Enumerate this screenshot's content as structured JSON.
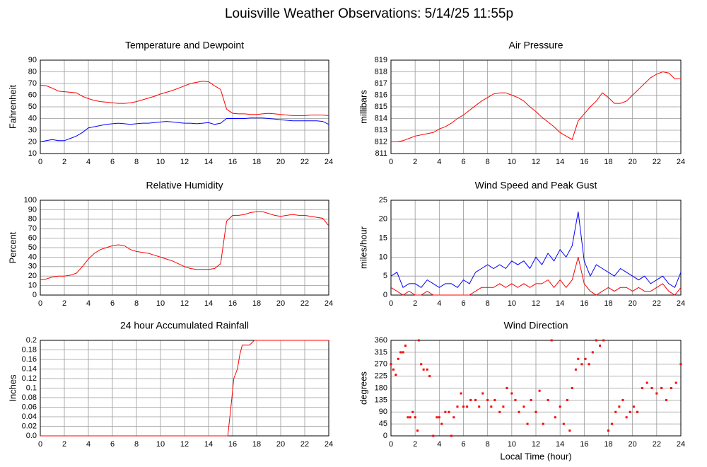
{
  "title": "Louisville Weather Observations: 5/14/25 11:55p",
  "chart_data": [
    {
      "type": "line",
      "title": "Temperature and Dewpoint",
      "ylabel": "Fahrenheit",
      "x": [
        0,
        0.5,
        1,
        1.5,
        2,
        2.5,
        3,
        3.5,
        4,
        4.5,
        5,
        5.5,
        6,
        6.5,
        7,
        7.5,
        8,
        8.5,
        9,
        9.5,
        10,
        10.5,
        11,
        11.5,
        12,
        12.5,
        13,
        13.5,
        14,
        14.5,
        15,
        15.5,
        16,
        16.5,
        17,
        17.5,
        18,
        18.5,
        19,
        19.5,
        20,
        20.5,
        21,
        21.5,
        22,
        22.5,
        23,
        23.5,
        24
      ],
      "series": [
        {
          "color": "#ff0000",
          "values": [
            68.5,
            68,
            66,
            63.5,
            63,
            62.5,
            62,
            59,
            57,
            55.5,
            54.5,
            54,
            53.5,
            53,
            53,
            53.5,
            54.5,
            56,
            57.5,
            59,
            61,
            62.5,
            64,
            66,
            68,
            70,
            71,
            72,
            71.5,
            68,
            65,
            48,
            44.5,
            44,
            44,
            43.5,
            43.5,
            44,
            44.5,
            44,
            43.5,
            43,
            42.5,
            42.5,
            42.5,
            43,
            43,
            43,
            42.5
          ]
        },
        {
          "color": "#0000ff",
          "values": [
            20,
            21,
            22,
            21,
            21,
            23,
            25,
            28,
            32,
            33,
            34,
            35,
            35.5,
            36,
            35.5,
            35,
            35.5,
            36,
            36,
            36.5,
            37,
            37.5,
            37,
            36.5,
            36,
            36,
            35.5,
            36,
            36.5,
            35,
            36,
            40,
            40,
            40,
            40,
            40.5,
            40.5,
            40.5,
            40,
            39.5,
            39,
            38.5,
            38,
            38,
            38,
            38,
            38,
            37.5,
            35
          ]
        }
      ],
      "xlim": [
        0,
        24
      ],
      "xticks": [
        0,
        2,
        4,
        6,
        8,
        10,
        12,
        14,
        16,
        18,
        20,
        22,
        24
      ],
      "ylim": [
        10,
        90
      ],
      "yticks": [
        10,
        20,
        30,
        40,
        50,
        60,
        70,
        80,
        90
      ],
      "grid": true
    },
    {
      "type": "line",
      "title": "Air Pressure",
      "ylabel": "millibars",
      "x": [
        0,
        0.5,
        1,
        1.5,
        2,
        2.5,
        3,
        3.5,
        4,
        4.5,
        5,
        5.5,
        6,
        6.5,
        7,
        7.5,
        8,
        8.5,
        9,
        9.5,
        10,
        10.5,
        11,
        11.5,
        12,
        12.5,
        13,
        13.5,
        14,
        14.5,
        15,
        15.5,
        16,
        16.5,
        17,
        17.5,
        18,
        18.5,
        19,
        19.5,
        20,
        20.5,
        21,
        21.5,
        22,
        22.5,
        23,
        23.5,
        24
      ],
      "series": [
        {
          "color": "#ff0000",
          "values": [
            812,
            812,
            812.1,
            812.3,
            812.5,
            812.6,
            812.7,
            812.8,
            813.1,
            813.3,
            813.6,
            814,
            814.3,
            814.7,
            815.1,
            815.5,
            815.8,
            816.1,
            816.2,
            816.2,
            816,
            815.8,
            815.5,
            815,
            814.6,
            814.1,
            813.7,
            813.3,
            812.8,
            812.5,
            812.2,
            813.8,
            814.4,
            815,
            815.5,
            816.2,
            815.8,
            815.3,
            815.3,
            815.5,
            816,
            816.5,
            817,
            817.5,
            817.8,
            818,
            817.9,
            817.4,
            817.4
          ]
        }
      ],
      "xlim": [
        0,
        24
      ],
      "xticks": [
        0,
        2,
        4,
        6,
        8,
        10,
        12,
        14,
        16,
        18,
        20,
        22,
        24
      ],
      "ylim": [
        811,
        819
      ],
      "yticks": [
        811,
        812,
        813,
        814,
        815,
        816,
        817,
        818,
        819
      ],
      "grid": true
    },
    {
      "type": "line",
      "title": "Relative Humidity",
      "ylabel": "Percent",
      "x": [
        0,
        0.5,
        1,
        1.5,
        2,
        2.5,
        3,
        3.5,
        4,
        4.5,
        5,
        5.5,
        6,
        6.5,
        7,
        7.5,
        8,
        8.5,
        9,
        9.5,
        10,
        10.5,
        11,
        11.5,
        12,
        12.5,
        13,
        13.5,
        14,
        14.5,
        15,
        15.5,
        16,
        16.5,
        17,
        17.5,
        18,
        18.5,
        19,
        19.5,
        20,
        20.5,
        21,
        21.5,
        22,
        22.5,
        23,
        23.5,
        24
      ],
      "series": [
        {
          "color": "#ff0000",
          "values": [
            16,
            17,
            19,
            20,
            20,
            21,
            23,
            30,
            38,
            44,
            48,
            50,
            52,
            53,
            52,
            48,
            46,
            45,
            44,
            42,
            40,
            38,
            36,
            33,
            30,
            28,
            27,
            27,
            27,
            28,
            33,
            78,
            84,
            84,
            85,
            87,
            88,
            88,
            86,
            84,
            83,
            84,
            85,
            84,
            84,
            83,
            82,
            81,
            73
          ]
        }
      ],
      "xlim": [
        0,
        24
      ],
      "xticks": [
        0,
        2,
        4,
        6,
        8,
        10,
        12,
        14,
        16,
        18,
        20,
        22,
        24
      ],
      "ylim": [
        0,
        100
      ],
      "yticks": [
        0,
        10,
        20,
        30,
        40,
        50,
        60,
        70,
        80,
        90,
        100
      ],
      "grid": true
    },
    {
      "type": "line",
      "title": "Wind Speed and Peak Gust",
      "ylabel": "miles/hour",
      "x": [
        0,
        0.5,
        1,
        1.5,
        2,
        2.5,
        3,
        3.5,
        4,
        4.5,
        5,
        5.5,
        6,
        6.5,
        7,
        7.5,
        8,
        8.5,
        9,
        9.5,
        10,
        10.5,
        11,
        11.5,
        12,
        12.5,
        13,
        13.5,
        14,
        14.5,
        15,
        15.5,
        16,
        16.5,
        17,
        17.5,
        18,
        18.5,
        19,
        19.5,
        20,
        20.5,
        21,
        21.5,
        22,
        22.5,
        23,
        23.5,
        24
      ],
      "series": [
        {
          "color": "#0000ff",
          "values": [
            5,
            6,
            2,
            3,
            3,
            2,
            4,
            3,
            2,
            3,
            3,
            2,
            4,
            3,
            6,
            7,
            8,
            7,
            8,
            7,
            9,
            8,
            9,
            7,
            10,
            8,
            11,
            9,
            12,
            10,
            13,
            22,
            9,
            5,
            8,
            7,
            6,
            5,
            7,
            6,
            5,
            4,
            5,
            3,
            4,
            5,
            3,
            2,
            6
          ]
        },
        {
          "color": "#ff0000",
          "values": [
            2,
            1,
            0,
            1,
            0,
            0,
            1,
            0,
            0,
            0,
            0,
            0,
            0,
            0,
            1,
            2,
            2,
            2,
            3,
            2,
            3,
            2,
            3,
            2,
            3,
            3,
            4,
            2,
            4,
            2,
            4,
            10,
            3,
            1,
            0,
            1,
            2,
            1,
            2,
            2,
            1,
            2,
            1,
            1,
            2,
            3,
            1,
            0,
            2
          ]
        }
      ],
      "xlim": [
        0,
        24
      ],
      "xticks": [
        0,
        2,
        4,
        6,
        8,
        10,
        12,
        14,
        16,
        18,
        20,
        22,
        24
      ],
      "ylim": [
        0,
        25
      ],
      "yticks": [
        0,
        5,
        10,
        15,
        20,
        25
      ],
      "grid": true
    },
    {
      "type": "line",
      "title": "24 hour Accumulated Rainfall",
      "ylabel": "Inches",
      "x": [
        0,
        15.6,
        15.9,
        16.1,
        16.4,
        16.6,
        16.8,
        17.4,
        17.8,
        24
      ],
      "series": [
        {
          "color": "#ff0000",
          "values": [
            0,
            0,
            0.07,
            0.12,
            0.14,
            0.17,
            0.19,
            0.19,
            0.2,
            0.2
          ]
        }
      ],
      "xlim": [
        0,
        24
      ],
      "xticks": [
        0,
        2,
        4,
        6,
        8,
        10,
        12,
        14,
        16,
        18,
        20,
        22,
        24
      ],
      "ylim": [
        0,
        0.2
      ],
      "yticks": [
        {
          "value": 0,
          "label": "0.0"
        },
        0.02,
        0.04,
        0.06,
        0.08,
        0.1,
        0.12,
        0.14,
        0.16,
        0.18,
        0.2
      ],
      "grid": true
    },
    {
      "type": "scatter",
      "title": "Wind Direction",
      "ylabel": "degrees",
      "xlabel": "Local Time (hour)",
      "x": [
        0,
        0.2,
        0.4,
        0.6,
        0.8,
        1.0,
        1.2,
        1.4,
        1.6,
        1.8,
        2.0,
        2.2,
        2.3,
        2.5,
        2.7,
        3.0,
        3.2,
        3.5,
        3.8,
        4.0,
        4.2,
        4.5,
        4.8,
        5.0,
        5.2,
        5.5,
        5.8,
        6.0,
        6.3,
        6.6,
        7.0,
        7.3,
        7.6,
        8.0,
        8.3,
        8.6,
        9.0,
        9.3,
        9.6,
        10.0,
        10.3,
        10.6,
        11.0,
        11.3,
        11.6,
        12.0,
        12.3,
        12.6,
        13.0,
        13.3,
        13.6,
        14.0,
        14.3,
        14.6,
        14.8,
        15.0,
        15.3,
        15.5,
        15.8,
        16.1,
        16.4,
        16.7,
        17.0,
        17.3,
        17.6,
        18.0,
        18.3,
        18.6,
        18.9,
        19.2,
        19.5,
        19.8,
        20.1,
        20.4,
        20.8,
        21.2,
        21.6,
        22.0,
        22.4,
        22.8,
        23.2,
        23.6,
        24.0
      ],
      "series": [
        {
          "color": "#ff0000",
          "values": [
            270,
            250,
            230,
            290,
            315,
            315,
            340,
            70,
            70,
            90,
            70,
            20,
            360,
            270,
            250,
            250,
            225,
            0,
            70,
            70,
            45,
            90,
            90,
            0,
            70,
            110,
            160,
            110,
            110,
            135,
            135,
            110,
            160,
            135,
            110,
            135,
            90,
            110,
            180,
            160,
            135,
            90,
            110,
            45,
            135,
            90,
            170,
            45,
            135,
            360,
            70,
            110,
            45,
            135,
            20,
            180,
            250,
            290,
            270,
            290,
            270,
            315,
            360,
            340,
            360,
            20,
            45,
            90,
            110,
            135,
            70,
            90,
            110,
            90,
            180,
            200,
            180,
            160,
            180,
            135,
            180,
            200,
            270
          ]
        }
      ],
      "xlim": [
        0,
        24
      ],
      "xticks": [
        0,
        2,
        4,
        6,
        8,
        10,
        12,
        14,
        16,
        18,
        20,
        22,
        24
      ],
      "ylim": [
        0,
        360
      ],
      "yticks": [
        0,
        45,
        90,
        135,
        180,
        225,
        270,
        315,
        360
      ],
      "grid": true
    }
  ]
}
